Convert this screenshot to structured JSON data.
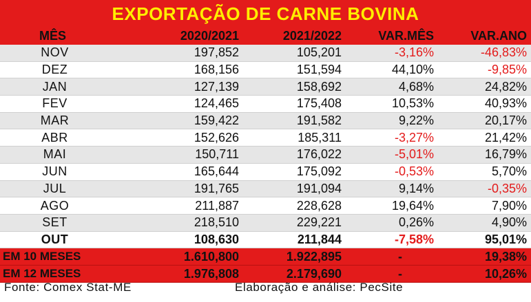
{
  "title": "EXPORTAÇÃO DE CARNE BOVINA",
  "headers": [
    "MÊS",
    "2020/2021",
    "2021/2022",
    "VAR.MÊS",
    "VAR.ANO"
  ],
  "rows": [
    {
      "month": "NOV",
      "y1": "197,852",
      "y2": "105,201",
      "var_mes": "-3,16%",
      "var_ano": "-46,83%"
    },
    {
      "month": "DEZ",
      "y1": "168,156",
      "y2": "151,594",
      "var_mes": "44,10%",
      "var_ano": "-9,85%"
    },
    {
      "month": "JAN",
      "y1": "127,139",
      "y2": "158,692",
      "var_mes": "4,68%",
      "var_ano": "24,82%"
    },
    {
      "month": "FEV",
      "y1": "124,465",
      "y2": "175,408",
      "var_mes": "10,53%",
      "var_ano": "40,93%"
    },
    {
      "month": "MAR",
      "y1": "159,422",
      "y2": "191,582",
      "var_mes": "9,22%",
      "var_ano": "20,17%"
    },
    {
      "month": "ABR",
      "y1": "152,626",
      "y2": "185,311",
      "var_mes": "-3,27%",
      "var_ano": "21,42%"
    },
    {
      "month": "MAI",
      "y1": "150,711",
      "y2": "176,022",
      "var_mes": "-5,01%",
      "var_ano": "16,79%"
    },
    {
      "month": "JUN",
      "y1": "165,644",
      "y2": "175,092",
      "var_mes": "-0,53%",
      "var_ano": "5,70%"
    },
    {
      "month": "JUL",
      "y1": "191,765",
      "y2": "191,094",
      "var_mes": "9,14%",
      "var_ano": "-0,35%"
    },
    {
      "month": "AGO",
      "y1": "211,887",
      "y2": "228,628",
      "var_mes": "19,64%",
      "var_ano": "7,90%"
    },
    {
      "month": "SET",
      "y1": "218,510",
      "y2": "229,221",
      "var_mes": "0,26%",
      "var_ano": "4,90%"
    },
    {
      "month": "OUT",
      "y1": "108,630",
      "y2": "211,844",
      "var_mes": "-7,58%",
      "var_ano": "95,01%"
    }
  ],
  "totals": [
    {
      "label": "EM 10 MESES",
      "y1": "1.610,800",
      "y2": "1.922,895",
      "var_mes": "-",
      "var_ano": "19,38%"
    },
    {
      "label": "EM 12 MESES",
      "y1": "1.976,808",
      "y2": "2.179,690",
      "var_mes": "-",
      "var_ano": "10,26%"
    }
  ],
  "footer": {
    "source": "Fonte: Comex Stat-ME",
    "credit": "Elaboração e análise: PecSite"
  },
  "colors": {
    "header_red": "#e31b1b",
    "title_yellow": "#ffee00",
    "negative_red": "#e31b1b",
    "row_shade": "#e6e6e6"
  }
}
